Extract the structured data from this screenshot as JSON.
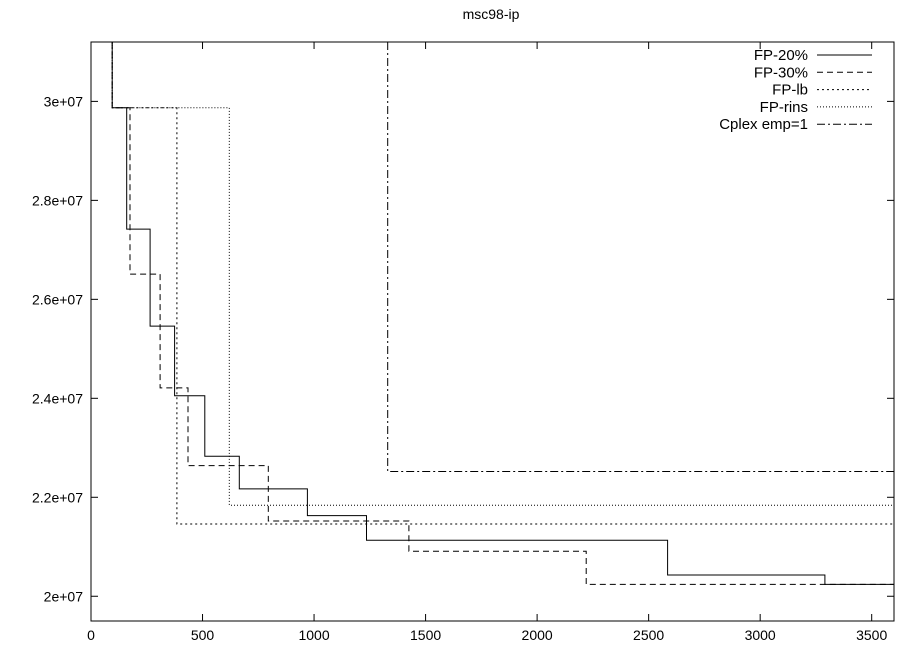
{
  "chart_data": {
    "type": "line",
    "step": true,
    "title": "msc98-ip",
    "xlabel": "",
    "ylabel": "",
    "xlim": [
      0,
      3600
    ],
    "ylim": [
      19500000,
      31200000
    ],
    "xticks": [
      0,
      500,
      1000,
      1500,
      2000,
      2500,
      3000,
      3500
    ],
    "xtick_labels": [
      "0",
      "500",
      "1000",
      "1500",
      "2000",
      "2500",
      "3000",
      "3500"
    ],
    "yticks": [
      20000000,
      22000000,
      24000000,
      26000000,
      28000000,
      30000000
    ],
    "ytick_labels": [
      "2e+07",
      "2.2e+07",
      "2.4e+07",
      "2.6e+07",
      "2.8e+07",
      "3e+07"
    ],
    "legend_position": "top-right",
    "grid": false,
    "series": [
      {
        "name": "FP-20%",
        "color": "#000000",
        "dash": "",
        "points": [
          [
            95,
            31200000
          ],
          [
            95,
            29870000
          ],
          [
            160,
            29870000
          ],
          [
            160,
            27420000
          ],
          [
            265,
            27420000
          ],
          [
            265,
            25460000
          ],
          [
            375,
            25460000
          ],
          [
            375,
            24050000
          ],
          [
            510,
            24050000
          ],
          [
            510,
            22830000
          ],
          [
            665,
            22830000
          ],
          [
            665,
            22170000
          ],
          [
            970,
            22170000
          ],
          [
            970,
            21630000
          ],
          [
            1235,
            21630000
          ],
          [
            1235,
            21130000
          ],
          [
            2585,
            21130000
          ],
          [
            2585,
            20430000
          ],
          [
            3290,
            20430000
          ],
          [
            3290,
            20240000
          ],
          [
            3600,
            20240000
          ]
        ]
      },
      {
        "name": "FP-30%",
        "color": "#000000",
        "dash": "6,4",
        "points": [
          [
            95,
            31200000
          ],
          [
            95,
            29870000
          ],
          [
            175,
            29870000
          ],
          [
            175,
            26510000
          ],
          [
            310,
            26510000
          ],
          [
            310,
            24210000
          ],
          [
            435,
            24210000
          ],
          [
            435,
            22640000
          ],
          [
            795,
            22640000
          ],
          [
            795,
            21520000
          ],
          [
            1425,
            21520000
          ],
          [
            1425,
            20910000
          ],
          [
            2220,
            20910000
          ],
          [
            2220,
            20240000
          ],
          [
            3600,
            20240000
          ]
        ]
      },
      {
        "name": "FP-lb",
        "color": "#000000",
        "dash": "2,3",
        "points": [
          [
            95,
            31200000
          ],
          [
            95,
            29870000
          ],
          [
            385,
            29870000
          ],
          [
            385,
            21460000
          ],
          [
            3600,
            21460000
          ]
        ]
      },
      {
        "name": "FP-rins",
        "color": "#000000",
        "dash": "1,2",
        "points": [
          [
            95,
            31200000
          ],
          [
            95,
            29870000
          ],
          [
            620,
            29870000
          ],
          [
            620,
            21840000
          ],
          [
            3600,
            21840000
          ]
        ]
      },
      {
        "name": "Cplex emp=1",
        "color": "#000000",
        "dash": "8,3,2,3",
        "points": [
          [
            1330,
            31200000
          ],
          [
            1330,
            22520000
          ],
          [
            3600,
            22520000
          ]
        ]
      }
    ]
  }
}
